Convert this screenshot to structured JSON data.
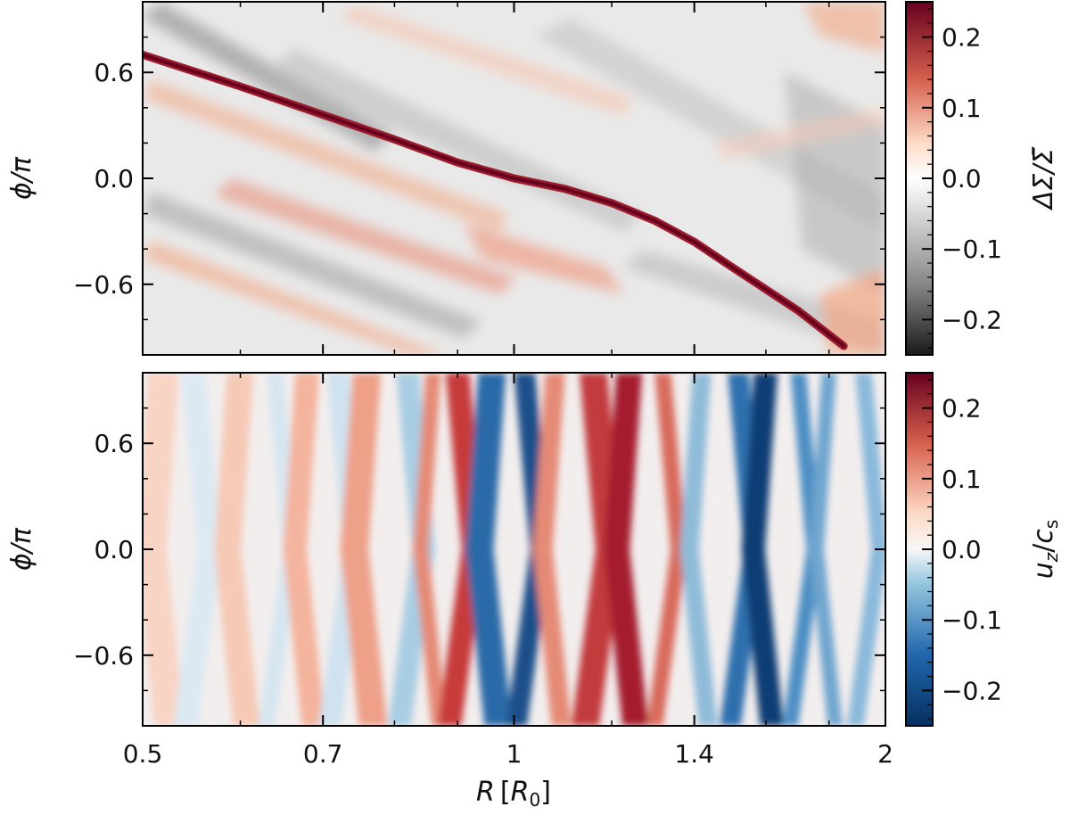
{
  "chart_data": [
    {
      "type": "heatmap",
      "panel": "top",
      "quantity": "surface density perturbation",
      "colorbar_label": "ΔΣ/Σ̄",
      "colormap": "gray-white-red (RdGy_r)",
      "colorbar_range": [
        -0.25,
        0.25
      ],
      "colorbar_ticks": [
        0.2,
        0.1,
        0.0,
        -0.1,
        -0.2
      ],
      "colorbar_tick_labels": [
        "0.2",
        "0.1",
        "0.0",
        "−0.1",
        "−0.2"
      ],
      "ylabel": "ϕ/π",
      "ylim": [
        -1,
        1
      ],
      "yticks": [
        0.6,
        0.0,
        -0.6
      ],
      "ytick_labels": [
        "0.6",
        "0.0",
        "−0.6"
      ],
      "xscale": "log",
      "xlim": [
        0.5,
        2
      ],
      "features": [
        {
          "name": "planet spiral wake",
          "R": [
            0.5,
            0.6,
            0.7,
            0.8,
            0.9,
            1.0,
            1.1,
            1.2,
            1.3,
            1.4,
            1.5,
            1.7,
            1.85
          ],
          "phi_over_pi": [
            0.7,
            0.52,
            0.36,
            0.22,
            0.09,
            0.0,
            -0.06,
            -0.14,
            -0.24,
            -0.36,
            -0.5,
            -0.75,
            -0.95
          ],
          "amplitude": 0.25
        }
      ]
    },
    {
      "type": "heatmap",
      "panel": "bottom",
      "quantity": "vertical velocity",
      "colorbar_label": "u_z/c_s",
      "colormap": "blue-white-red (RdBu_r)",
      "colorbar_range": [
        -0.25,
        0.25
      ],
      "colorbar_ticks": [
        0.2,
        0.1,
        0.0,
        -0.1,
        -0.2
      ],
      "colorbar_tick_labels": [
        "0.2",
        "0.1",
        "0.0",
        "−0.1",
        "−0.2"
      ],
      "ylabel": "ϕ/π",
      "ylim": [
        -1,
        1
      ],
      "yticks": [
        0.6,
        0.0,
        -0.6
      ],
      "ytick_labels": [
        "0.6",
        "0.0",
        "−0.6"
      ],
      "xlabel": "R [R0]",
      "xscale": "log",
      "xlim": [
        0.5,
        2
      ],
      "xticks": [
        0.5,
        0.7,
        1,
        1.4,
        2
      ],
      "xtick_labels": [
        "0.5",
        "0.7",
        "1",
        "1.4",
        "2"
      ],
      "features": [
        {
          "name": "inner weak bands",
          "R_range": [
            0.5,
            0.8
          ],
          "amplitude": 0.08
        },
        {
          "name": "positive band",
          "R_center": 0.92,
          "amplitude": 0.2
        },
        {
          "name": "negative band",
          "R_center": 1.0,
          "amplitude": -0.25
        },
        {
          "name": "positive band",
          "R_center": 1.22,
          "amplitude": 0.25
        },
        {
          "name": "negative band",
          "R_center": 1.6,
          "amplitude": -0.25
        }
      ]
    }
  ],
  "labels": {
    "ylabel_top": "ϕ/π",
    "ylabel_bottom": "ϕ/π",
    "xlabel_main": "R",
    "xlabel_bracket_open": "[",
    "xlabel_R": "R",
    "xlabel_sub": "0",
    "xlabel_bracket_close": "]",
    "cbar_top_label": "ΔΣ/Σ̄",
    "cbar_bottom_label_u": "u",
    "cbar_bottom_label_u_sub": "z",
    "cbar_bottom_label_slash": "/",
    "cbar_bottom_label_c": "c",
    "cbar_bottom_label_c_sub": "s"
  },
  "colors": {
    "red_dark": "#67001f",
    "red": "#d6604d",
    "white": "#f7f7f7",
    "gray": "#878787",
    "gray_dark": "#1a1a1a",
    "blue": "#4393c3",
    "blue_dark": "#053061"
  }
}
